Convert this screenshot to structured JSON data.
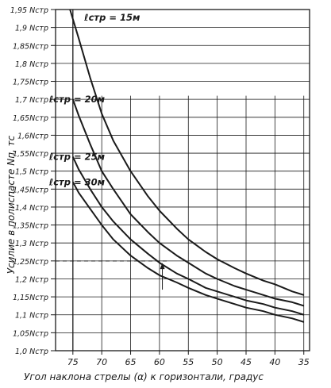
{
  "chart_data": {
    "type": "line",
    "title": "",
    "xlabel": "Угол наклона стрелы (α) к горизонтали, градус",
    "ylabel": "Усилие в полиспасте Nп, тс",
    "x_ticks": [
      75,
      70,
      65,
      60,
      55,
      50,
      45,
      40,
      35
    ],
    "x_reversed": true,
    "xlim": [
      78,
      34
    ],
    "y_ticks": [
      1.0,
      1.05,
      1.1,
      1.15,
      1.2,
      1.25,
      1.3,
      1.35,
      1.4,
      1.45,
      1.5,
      1.55,
      1.6,
      1.65,
      1.7,
      1.75,
      1.8,
      1.85,
      1.9,
      1.95
    ],
    "y_tick_labels": [
      "1,0 Nстр",
      "1,05Nстр",
      "1,1 Nстр",
      "1,15Nстр",
      "1,2 Nстр",
      "1,25Nстр",
      "1,3 Nстр",
      "1,35Nстр",
      "1,4 Nстр",
      "1,45Nстр",
      "1,5 Nстр",
      "1,55Nстр",
      "1,6Nстр",
      "1,65Nстр",
      "1,7 Nстр",
      "1,75Nстр",
      "1,8 Nстр",
      "1,85Nстр",
      "1,9 Nстр",
      "1,95 Nстр"
    ],
    "ylim": [
      1.0,
      1.95
    ],
    "grid": true,
    "series": [
      {
        "name": "ℓстр = 15м",
        "x": [
          75.5,
          74,
          72,
          70,
          68,
          65,
          62,
          60,
          57,
          55,
          52,
          50,
          47,
          45,
          42,
          40,
          37,
          35
        ],
        "y": [
          1.95,
          1.87,
          1.76,
          1.66,
          1.585,
          1.5,
          1.43,
          1.39,
          1.34,
          1.31,
          1.275,
          1.255,
          1.23,
          1.215,
          1.195,
          1.185,
          1.165,
          1.155
        ]
      },
      {
        "name": "ℓстр = 20м",
        "x": [
          75,
          74,
          72,
          70,
          68,
          65,
          62,
          60,
          57,
          55,
          52,
          50,
          47,
          45,
          42,
          40,
          37,
          35
        ],
        "y": [
          1.7,
          1.655,
          1.575,
          1.5,
          1.45,
          1.38,
          1.33,
          1.3,
          1.265,
          1.245,
          1.215,
          1.2,
          1.18,
          1.17,
          1.155,
          1.145,
          1.135,
          1.125
        ]
      },
      {
        "name": "ℓстр = 25м",
        "x": [
          75,
          74,
          72,
          70,
          68,
          65,
          62,
          60,
          57,
          55,
          52,
          50,
          47,
          45,
          42,
          40,
          37,
          35
        ],
        "y": [
          1.54,
          1.505,
          1.45,
          1.4,
          1.36,
          1.31,
          1.27,
          1.245,
          1.215,
          1.2,
          1.175,
          1.165,
          1.15,
          1.14,
          1.13,
          1.12,
          1.11,
          1.1
        ]
      },
      {
        "name": "ℓстр = 30м",
        "x": [
          75,
          74,
          72,
          70,
          68,
          65,
          62,
          60,
          57,
          55,
          52,
          50,
          47,
          45,
          42,
          40,
          37,
          35
        ],
        "y": [
          1.47,
          1.44,
          1.395,
          1.35,
          1.31,
          1.265,
          1.23,
          1.21,
          1.19,
          1.175,
          1.155,
          1.145,
          1.13,
          1.12,
          1.11,
          1.1,
          1.09,
          1.08
        ]
      }
    ],
    "annotations": [
      {
        "type": "dashed-line",
        "y": 1.25,
        "x_from": 78,
        "x_to": 58.5
      },
      {
        "type": "arrow",
        "x": 59.5,
        "y_from": 1.17,
        "y_to": 1.245
      }
    ]
  }
}
